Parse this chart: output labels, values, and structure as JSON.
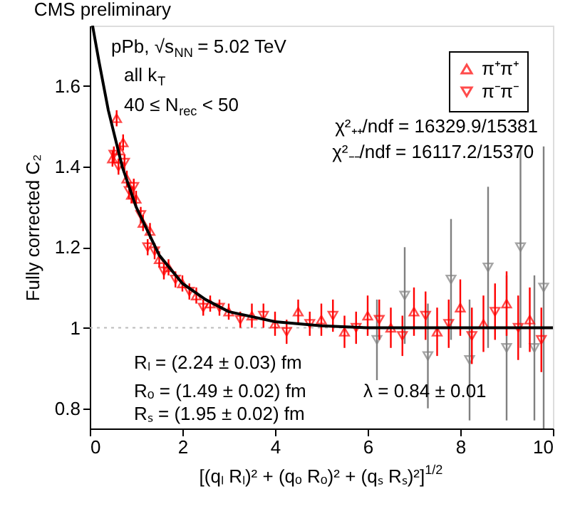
{
  "chart_data": {
    "type": "scatter",
    "title": "CMS preliminary",
    "xlabel": "[(qₗ Rₗ)² + (qₒ Rₒ)² + (qₛ Rₛ)²]$^{1/2}$",
    "ylabel": "Fully corrected C₂",
    "xlim": [
      0,
      10
    ],
    "xticks": [
      0,
      2,
      4,
      6,
      8,
      10
    ],
    "ylim": [
      0.75,
      1.75
    ],
    "yticks": [
      0.8,
      {
        "value": 1,
        "label": "1"
      },
      1.2,
      1.4,
      1.6
    ],
    "grid": false,
    "legend": "top right",
    "ref_lines": [
      {
        "axis": "y",
        "value": 1,
        "color": "#bbbbbb",
        "line_style": "dotted"
      }
    ],
    "annotations": [
      "pPb, √s$_{NN}$ = 5.02 TeV",
      "all k$_{T}$",
      "40 ≤ N$_{rec}$ < 50",
      "χ²₊₊/ndf = 16329.9/15381",
      "χ²₋₋/ndf = 16117.2/15370",
      "Rₗ = (2.24 ± 0.03) fm",
      "Rₒ = (1.49 ± 0.02) fm",
      "Rₛ = (1.95 ± 0.02) fm",
      "λ = 0.84 ± 0.01"
    ],
    "series": [
      {
        "color": "#808080",
        "marker": "triangle-down",
        "x": [
          6.2,
          6.8,
          7.3,
          7.8,
          8.2,
          8.6,
          9.0,
          9.3,
          9.6,
          9.8
        ],
        "values": [
          0.97,
          1.08,
          0.93,
          1.12,
          0.92,
          1.15,
          0.95,
          1.2,
          0.95,
          1.1
        ],
        "errors": [
          0.1,
          0.12,
          0.13,
          0.15,
          0.15,
          0.2,
          0.18,
          0.25,
          0.18,
          0.35
        ]
      },
      {
        "name": "π⁺π⁺",
        "color": "#ff0000",
        "marker": "triangle",
        "x": [
          0.49,
          0.58,
          0.65,
          0.72,
          0.8,
          0.9,
          1.0,
          1.15,
          1.3,
          1.5,
          1.7,
          2.0,
          2.3,
          2.6,
          3.0,
          3.5,
          4.0,
          4.5,
          5.0,
          5.5,
          6.0,
          6.5,
          7.0,
          7.5,
          8.0,
          8.5,
          9.0,
          9.5
        ],
        "values": [
          1.42,
          1.52,
          1.44,
          1.46,
          1.37,
          1.33,
          1.32,
          1.26,
          1.24,
          1.17,
          1.15,
          1.11,
          1.08,
          1.06,
          1.04,
          1.03,
          1.01,
          1.04,
          1.02,
          0.99,
          1.03,
          1.0,
          1.04,
          0.99,
          1.05,
          1.01,
          1.06,
          1.02
        ],
        "errors": [
          0.02,
          0.02,
          0.02,
          0.02,
          0.02,
          0.02,
          0.02,
          0.02,
          0.02,
          0.02,
          0.02,
          0.02,
          0.02,
          0.02,
          0.02,
          0.03,
          0.03,
          0.03,
          0.04,
          0.04,
          0.05,
          0.05,
          0.06,
          0.06,
          0.07,
          0.07,
          0.08,
          0.08
        ]
      },
      {
        "name": "π⁻π⁻",
        "color": "#ff0000",
        "marker": "triangle-down",
        "x": [
          0.52,
          0.62,
          0.75,
          0.85,
          0.95,
          1.1,
          1.25,
          1.4,
          1.6,
          1.85,
          2.15,
          2.45,
          2.8,
          3.25,
          3.75,
          4.25,
          4.75,
          5.25,
          5.75,
          6.25,
          6.75,
          7.25,
          7.75,
          8.25,
          8.75,
          9.25,
          9.75
        ],
        "values": [
          1.43,
          1.4,
          1.41,
          1.34,
          1.35,
          1.28,
          1.2,
          1.19,
          1.14,
          1.12,
          1.09,
          1.05,
          1.05,
          1.02,
          1.03,
          0.99,
          1.01,
          1.03,
          1.0,
          1.02,
          0.98,
          1.03,
          1.01,
          0.98,
          1.04,
          1.0,
          0.97
        ],
        "errors": [
          0.02,
          0.02,
          0.02,
          0.02,
          0.02,
          0.02,
          0.02,
          0.02,
          0.02,
          0.02,
          0.02,
          0.02,
          0.02,
          0.02,
          0.03,
          0.03,
          0.03,
          0.04,
          0.04,
          0.05,
          0.05,
          0.06,
          0.06,
          0.07,
          0.07,
          0.08,
          0.08
        ]
      },
      {
        "type": "line",
        "color": "#000000",
        "line_style": "solid",
        "x": [
          0.06,
          0.2,
          0.4,
          0.7,
          1.0,
          1.5,
          2.0,
          2.5,
          3.0,
          4.0,
          5.0,
          6.0,
          8.0,
          10.0
        ],
        "values": [
          1.75,
          1.66,
          1.54,
          1.4,
          1.3,
          1.18,
          1.11,
          1.07,
          1.04,
          1.015,
          1.005,
          1.0,
          1.0,
          1.0
        ]
      }
    ]
  }
}
